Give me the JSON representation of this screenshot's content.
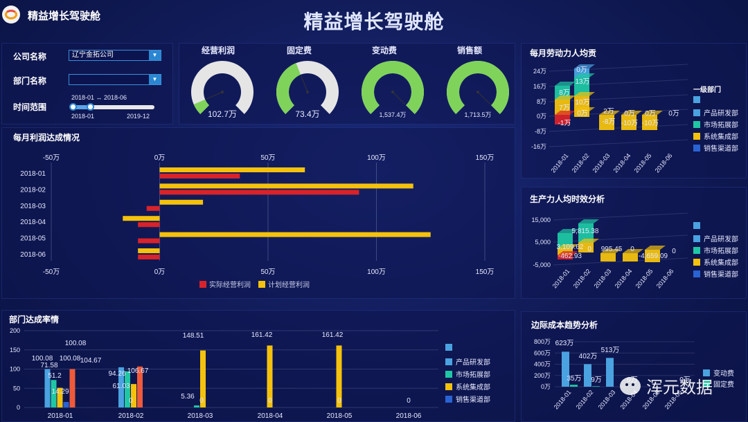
{
  "header": {
    "app_title": "精益增长驾驶舱",
    "main_title": "精益增长驾驶舱"
  },
  "filters": {
    "company_label": "公司名称",
    "company_value": "辽宁金拓公司",
    "dept_label": "部门名称",
    "dept_value": "",
    "time_label": "时间范围",
    "range_text": "2018-01 ↔ 2018-06",
    "slider_min": "2018-01",
    "slider_max": "2019-12"
  },
  "gauges": [
    {
      "label": "经营利润",
      "value_text": "102.7万",
      "fill_fraction": 0.08,
      "fill_color": "#7fd35a"
    },
    {
      "label": "固定费",
      "value_text": "73.4万",
      "fill_fraction": 0.42,
      "fill_color": "#7fd35a"
    },
    {
      "label": "变动费",
      "value_text": "1,537.4万",
      "fill_fraction": 1.0,
      "fill_color": "#7fd35a"
    },
    {
      "label": "销售额",
      "value_text": "1,713.5万",
      "fill_fraction": 1.0,
      "fill_color": "#7fd35a"
    }
  ],
  "profit_chart": {
    "title": "每月利润达成情况",
    "type": "bar",
    "categories": [
      "2018-01",
      "2018-02",
      "2018-03",
      "2018-04",
      "2018-05",
      "2018-06"
    ],
    "series": [
      {
        "name": "实际经营利润",
        "color": "#d8232a",
        "values": [
          37,
          92,
          -6,
          -10,
          -10,
          -10
        ]
      },
      {
        "name": "计划经营利润",
        "color": "#f4c20d",
        "values": [
          67,
          117,
          20,
          -17,
          125,
          -10
        ]
      }
    ],
    "xlim": [
      -50,
      150
    ],
    "tick_labels": [
      "-50万",
      "0万",
      "50万",
      "100万",
      "150万"
    ],
    "tick_values": [
      -50,
      0,
      50,
      100,
      150
    ]
  },
  "labor_chart": {
    "title": "每月劳动力人均贡",
    "type": "bar",
    "y_ticks": [
      "24万",
      "16万",
      "8万",
      "0万",
      "-8万",
      "-16万"
    ],
    "categories": [
      "2018-01",
      "2018-02",
      "2018-03",
      "2018-04",
      "2018-05",
      "2018-06"
    ],
    "labels": [
      [
        "8万",
        "7万",
        "-1万"
      ],
      [
        "0万",
        "13万",
        "10万",
        "0万"
      ],
      [
        "2万",
        "-8万"
      ],
      [
        "0万",
        "-10万"
      ],
      [
        "0万",
        "-10万"
      ],
      [
        "0万"
      ]
    ],
    "legend_title": "一级部门",
    "legend": [
      "产品研发部",
      "市场拓展部",
      "系统集成部",
      "销售渠道部"
    ]
  },
  "productivity_chart": {
    "title": "生产力人均时效分析",
    "type": "bar",
    "y_ticks": [
      "15,000",
      "5,000",
      "-5,000"
    ],
    "categories": [
      "2018-01",
      "2018-02",
      "2018-03",
      "2018-04",
      "2018-05",
      "2018-06"
    ],
    "labels": [
      "3,109.62",
      "-462.93",
      "5,815.38",
      "0",
      "995.45",
      "0",
      "-4,659.09",
      "0"
    ],
    "legend": [
      "产品研发部",
      "市场拓展部",
      "系统集成部",
      "销售渠道部"
    ]
  },
  "dept_chart": {
    "title": "部门达成率情",
    "type": "bar",
    "y_ticks": [
      "200",
      "150",
      "100",
      "50",
      "0"
    ],
    "ylim": [
      0,
      200
    ],
    "categories": [
      "2018-01",
      "2018-02",
      "2018-03",
      "2018-04",
      "2018-05",
      "2018-06"
    ],
    "series": [
      {
        "name": "产品研发部",
        "color": "#4aa3e0",
        "values": [
          100.08,
          104.67,
          0,
          0,
          0,
          0
        ]
      },
      {
        "name": "市场拓展部",
        "color": "#1fc7a4",
        "values": [
          71.58,
          94.26,
          5.36,
          0,
          0,
          0
        ]
      },
      {
        "name": "系统集成部",
        "color": "#f4c20d",
        "values": [
          51.2,
          61.03,
          148.51,
          161.42,
          161.42,
          0
        ]
      },
      {
        "name": "销售渠道部",
        "color": "#2a63d4",
        "values": [
          14.29,
          0,
          0,
          0,
          0,
          0
        ]
      },
      {
        "name": "",
        "color": "#ef5a3a",
        "values": [
          100.08,
          106.67,
          0,
          0,
          0,
          0
        ]
      }
    ],
    "bar_labels": [
      [
        "100.08",
        "71.58",
        "51.2",
        "14.29",
        "100.08",
        "100.08"
      ],
      [
        "104.67",
        "94.26",
        "61.03",
        "0",
        "106.67"
      ],
      [
        "5.36",
        "148.51",
        "0"
      ],
      [
        "161.42",
        "0"
      ],
      [
        "161.42",
        "0"
      ],
      [
        "0"
      ]
    ],
    "legend": [
      "产品研发部",
      "市场拓展部",
      "系统集成部",
      "销售渠道部"
    ]
  },
  "marginal_chart": {
    "title": "边际成本趋势分析",
    "type": "bar",
    "y_ticks": [
      "800万",
      "600万",
      "400万",
      "200万",
      "0万"
    ],
    "ylim": [
      0,
      800
    ],
    "categories": [
      "2018-01",
      "2018-02",
      "2018-03",
      "2018-04",
      "2018-05",
      "2018-06"
    ],
    "series": [
      {
        "name": "变动费",
        "color": "#4aa3e0",
        "values": [
          623,
          402,
          513,
          0,
          0,
          0
        ]
      },
      {
        "name": "固定费",
        "color": "#1fc7a4",
        "values": [
          35,
          9,
          0,
          0,
          0,
          0
        ]
      }
    ],
    "labels": [
      "623万",
      "35万",
      "402万",
      "9万",
      "513万",
      "0万",
      "0万"
    ],
    "legend": [
      "变动费",
      "固定费"
    ]
  },
  "watermark": {
    "text": "浑元数据"
  }
}
